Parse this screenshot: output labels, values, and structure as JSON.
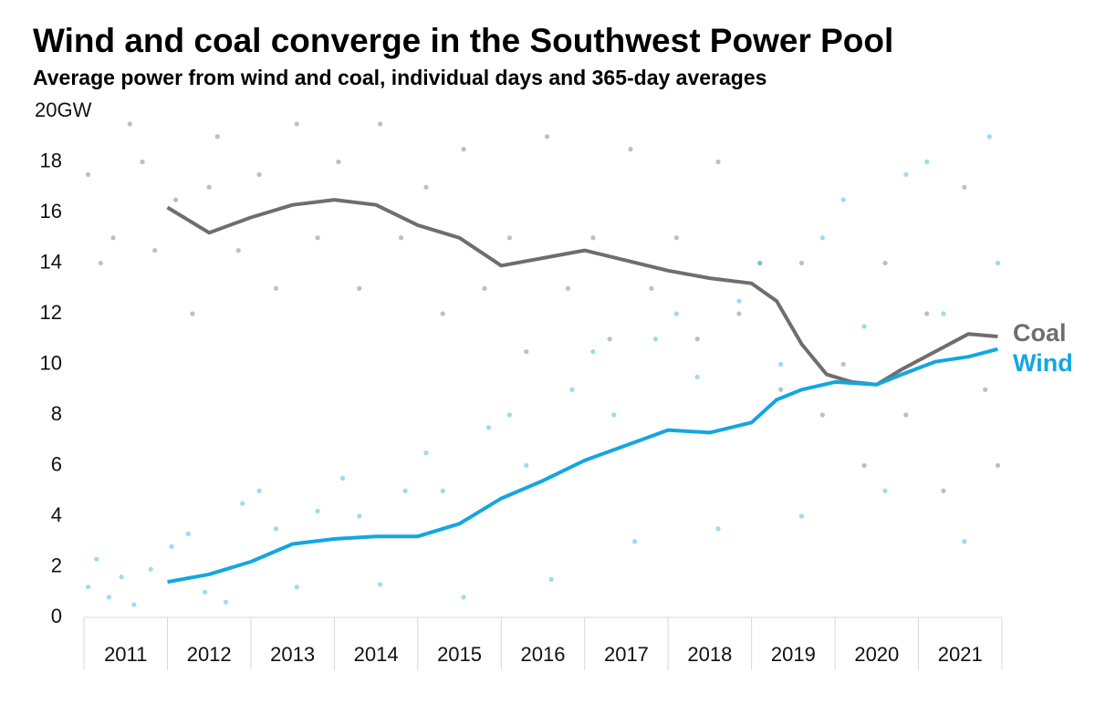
{
  "chart_data": {
    "type": "scatter-line",
    "title": "Wind and coal converge in the Southwest Power Pool",
    "subtitle": "Average power from wind and coal, individual days and 365-day averages",
    "xlim": [
      2011,
      2022
    ],
    "xticks": [
      {
        "value": 2011.5,
        "label": "2011"
      },
      {
        "value": 2012.5,
        "label": "2012"
      },
      {
        "value": 2013.5,
        "label": "2013"
      },
      {
        "value": 2014.5,
        "label": "2014"
      },
      {
        "value": 2015.5,
        "label": "2015"
      },
      {
        "value": 2016.5,
        "label": "2016"
      },
      {
        "value": 2017.5,
        "label": "2017"
      },
      {
        "value": 2018.5,
        "label": "2018"
      },
      {
        "value": 2019.5,
        "label": "2019"
      },
      {
        "value": 2020.5,
        "label": "2020"
      },
      {
        "value": 2021.5,
        "label": "2021"
      }
    ],
    "ylim": [
      0,
      20
    ],
    "yticks": [
      0,
      2,
      4,
      6,
      8,
      10,
      12,
      14,
      16,
      18,
      {
        "value": 20,
        "label": "20GW"
      }
    ],
    "grid": false,
    "series": [
      {
        "name": "Coal",
        "color": "#6e6e6e",
        "point_color": "#8a8a8a",
        "x": [
          2012.0,
          2012.5,
          2013.0,
          2013.5,
          2014.0,
          2014.5,
          2015.0,
          2015.5,
          2016.0,
          2016.5,
          2017.0,
          2017.5,
          2018.0,
          2018.5,
          2019.0,
          2019.3,
          2019.6,
          2019.9,
          2020.2,
          2020.5,
          2020.8,
          2021.2,
          2021.6,
          2021.95
        ],
        "values": [
          16.2,
          15.2,
          15.8,
          16.3,
          16.5,
          16.3,
          15.5,
          15.0,
          13.9,
          14.2,
          14.5,
          14.1,
          13.7,
          13.4,
          13.2,
          12.5,
          10.8,
          9.6,
          9.3,
          9.2,
          9.8,
          10.5,
          11.2,
          11.1
        ],
        "daily_x": [
          2011.05,
          2011.2,
          2011.35,
          2011.55,
          2011.7,
          2011.85,
          2012.1,
          2012.3,
          2012.5,
          2012.6,
          2012.85,
          2013.1,
          2013.3,
          2013.55,
          2013.8,
          2014.05,
          2014.3,
          2014.55,
          2014.8,
          2015.1,
          2015.3,
          2015.55,
          2015.8,
          2016.1,
          2016.3,
          2016.55,
          2016.8,
          2017.1,
          2017.3,
          2017.55,
          2017.8,
          2018.1,
          2018.35,
          2018.6,
          2018.85,
          2019.1,
          2019.35,
          2019.6,
          2019.85,
          2020.1,
          2020.35,
          2020.6,
          2020.85,
          2021.1,
          2021.3,
          2021.55,
          2021.8,
          2021.95
        ],
        "daily_values": [
          17.5,
          14,
          15,
          19.5,
          18,
          14.5,
          16.5,
          12,
          17,
          19,
          14.5,
          17.5,
          13,
          19.5,
          15,
          18,
          13,
          19.5,
          15,
          17,
          12,
          18.5,
          13,
          15,
          10.5,
          19,
          13,
          15,
          11,
          18.5,
          13,
          15,
          11,
          18,
          12,
          14,
          9,
          14,
          8,
          10,
          6,
          14,
          8,
          12,
          5,
          17,
          9,
          6
        ]
      },
      {
        "name": "Wind",
        "color": "#14a6e0",
        "point_color": "#4dbbe8",
        "x": [
          2012.0,
          2012.5,
          2013.0,
          2013.5,
          2014.0,
          2014.5,
          2015.0,
          2015.5,
          2016.0,
          2016.5,
          2017.0,
          2017.5,
          2018.0,
          2018.5,
          2019.0,
          2019.3,
          2019.6,
          2020.0,
          2020.5,
          2020.8,
          2021.2,
          2021.6,
          2021.95
        ],
        "values": [
          1.4,
          1.7,
          2.2,
          2.9,
          3.1,
          3.2,
          3.2,
          3.7,
          4.7,
          5.4,
          6.2,
          6.8,
          7.4,
          7.3,
          7.7,
          8.6,
          9.0,
          9.3,
          9.2,
          9.6,
          10.1,
          10.3,
          10.6
        ],
        "daily_x": [
          2011.05,
          2011.15,
          2011.3,
          2011.45,
          2011.6,
          2011.8,
          2012.05,
          2012.25,
          2012.45,
          2012.7,
          2012.9,
          2013.1,
          2013.3,
          2013.55,
          2013.8,
          2014.1,
          2014.3,
          2014.55,
          2014.85,
          2015.1,
          2015.3,
          2015.55,
          2015.85,
          2016.1,
          2016.3,
          2016.6,
          2016.85,
          2017.1,
          2017.35,
          2017.6,
          2017.85,
          2018.1,
          2018.35,
          2018.6,
          2018.85,
          2019.1,
          2019.35,
          2019.6,
          2019.85,
          2020.1,
          2020.35,
          2020.6,
          2020.85,
          2021.1,
          2021.3,
          2021.55,
          2021.85,
          2021.95
        ],
        "daily_values": [
          1.2,
          2.3,
          0.8,
          1.6,
          0.5,
          1.9,
          2.8,
          3.3,
          1.0,
          0.6,
          4.5,
          5.0,
          3.5,
          1.2,
          4.2,
          5.5,
          4.0,
          1.3,
          5.0,
          6.5,
          5.0,
          0.8,
          7.5,
          8.0,
          6.0,
          1.5,
          9.0,
          10.5,
          8.0,
          3.0,
          11.0,
          12.0,
          9.5,
          3.5,
          12.5,
          14.0,
          10.0,
          4.0,
          15.0,
          16.5,
          11.5,
          5.0,
          17.5,
          18.0,
          12.0,
          3.0,
          19.0,
          14.0
        ]
      }
    ]
  }
}
